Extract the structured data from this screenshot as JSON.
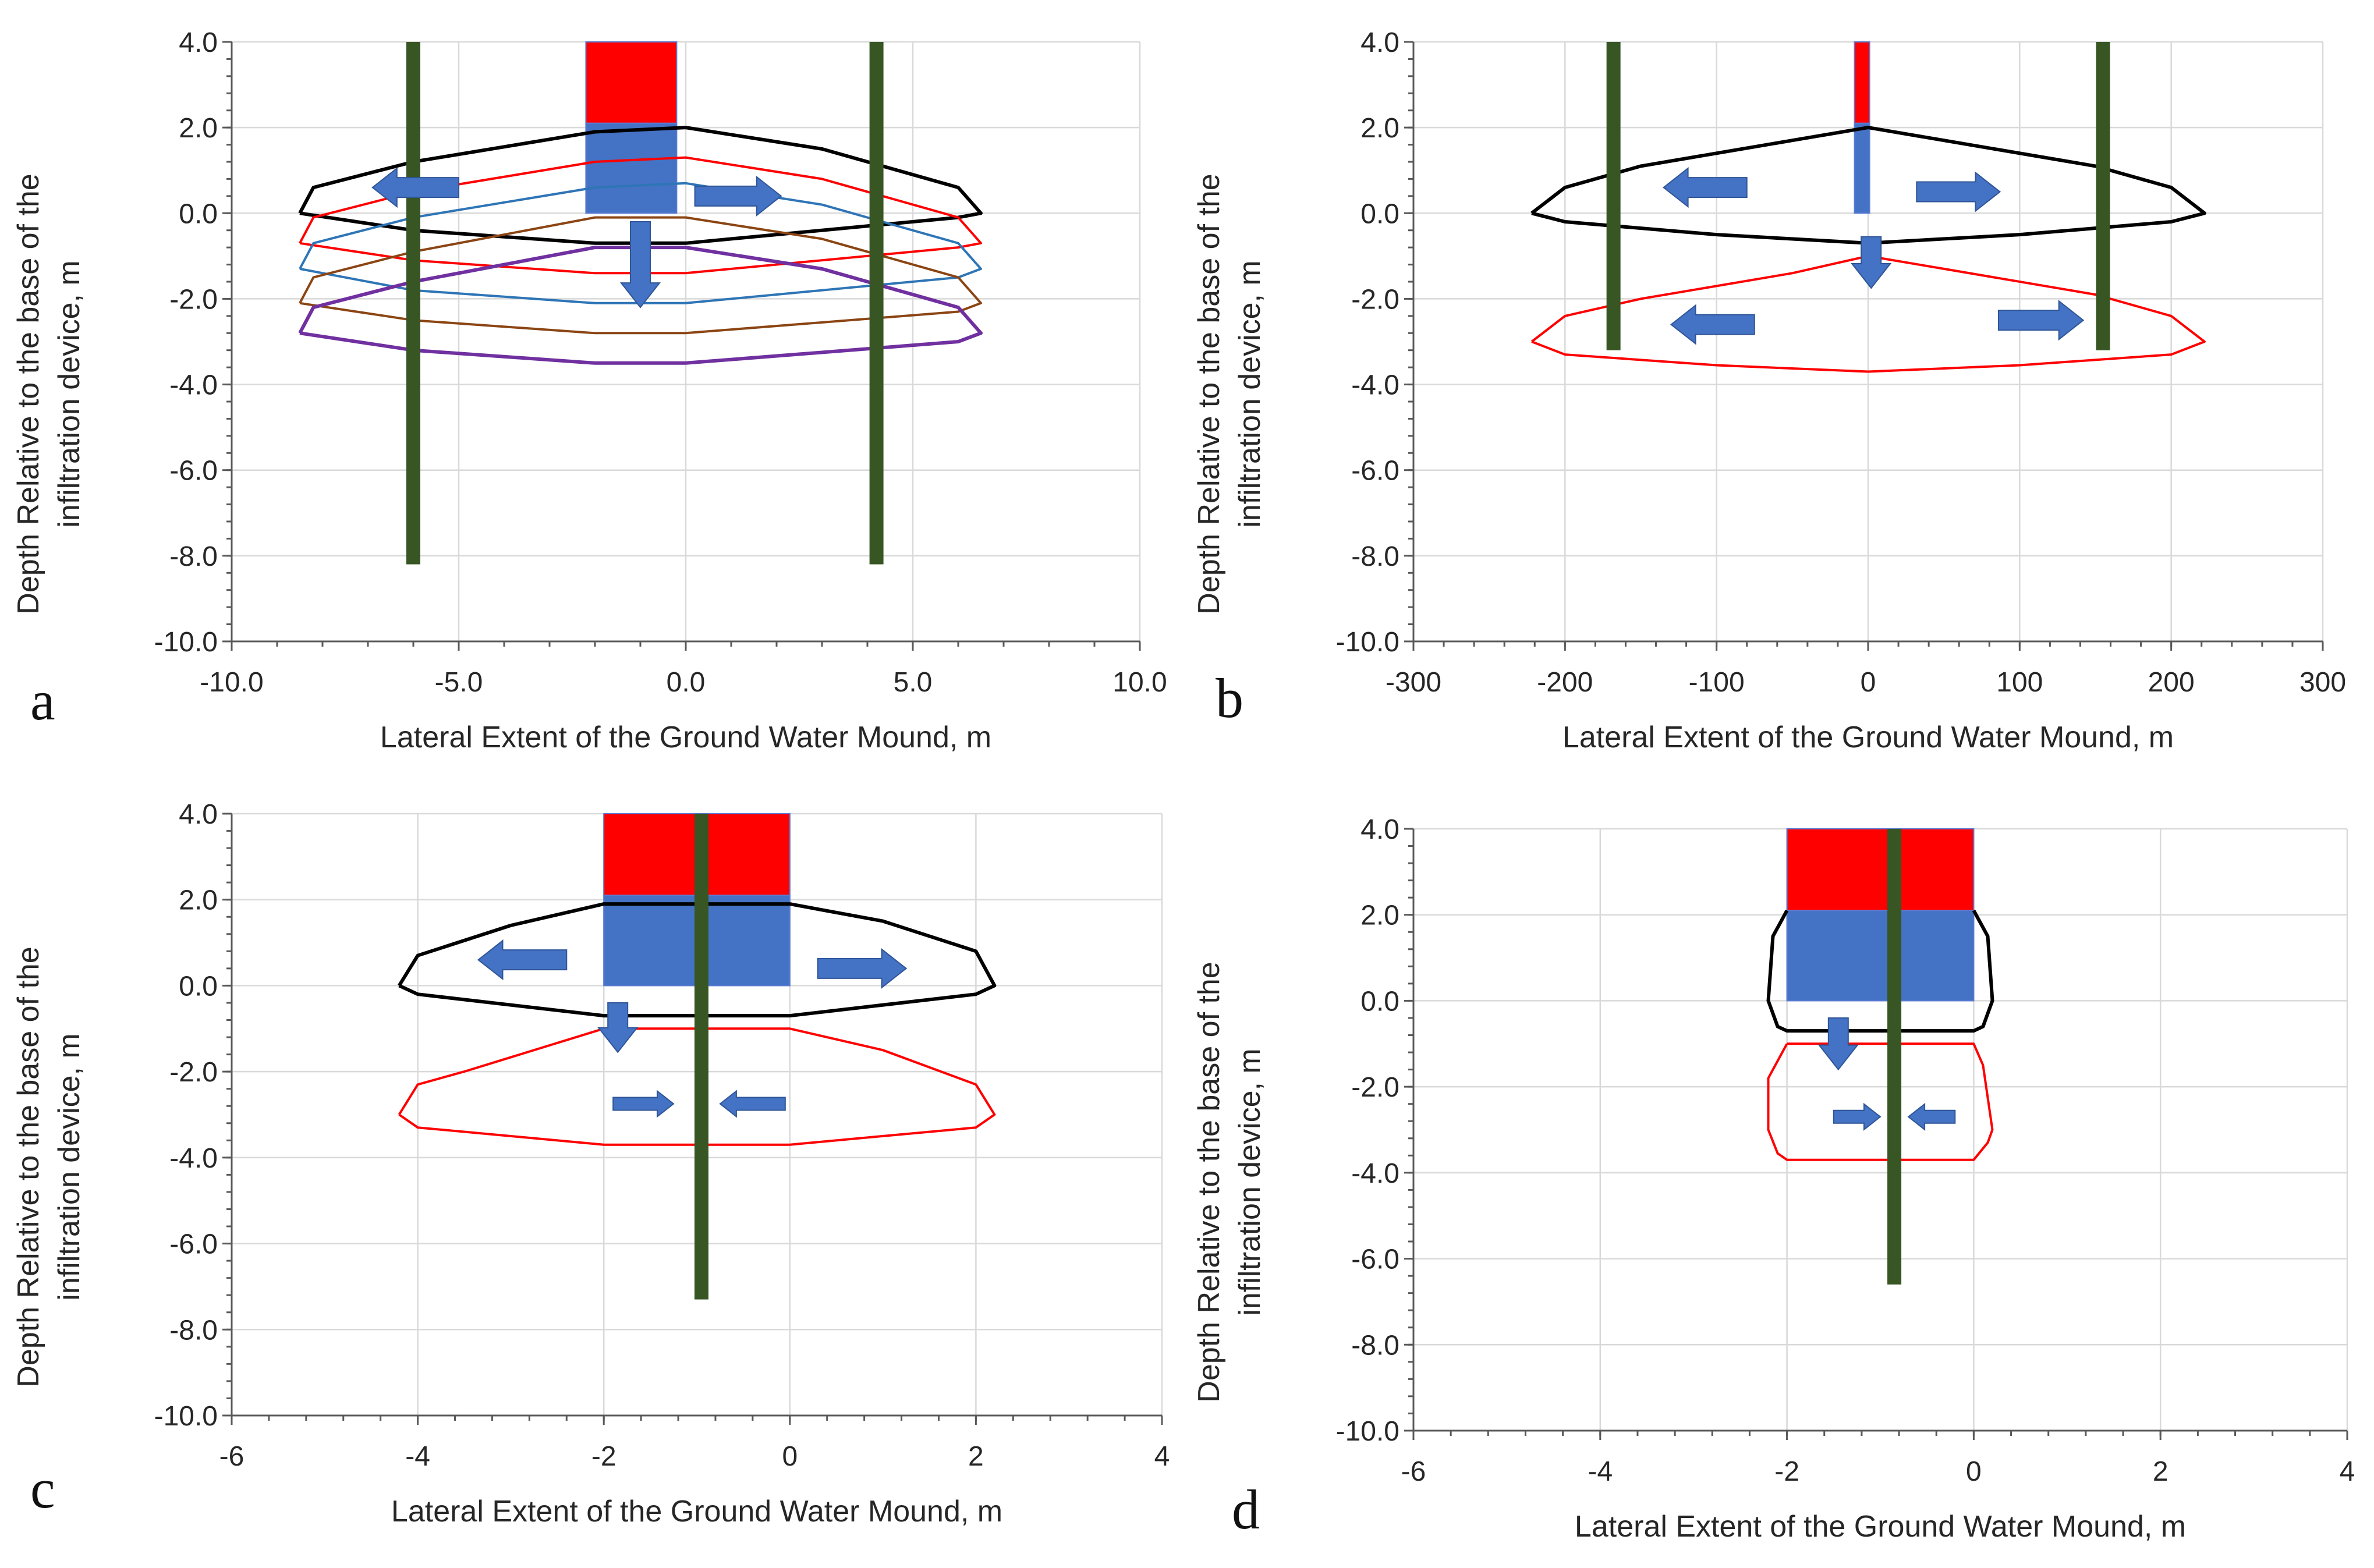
{
  "chart_data": [
    {
      "panel": "a",
      "type": "line",
      "xlabel": "Lateral Extent of the Ground Water Mound, m",
      "ylabel": [
        "Depth Relative to the base of the",
        "infiltration device, m"
      ],
      "xlim": [
        -10,
        10
      ],
      "ylim": [
        -10,
        4
      ],
      "xticks": [
        -10,
        -5,
        0,
        5,
        10
      ],
      "xtick_labels": [
        "-10.0",
        "-5.0",
        "0.0",
        "5.0",
        "10.0"
      ],
      "yticks": [
        4,
        2,
        0,
        -2,
        -4,
        -6,
        -8,
        -10
      ],
      "ytick_labels": [
        "4.0",
        "2.0",
        "0.0",
        "-2.0",
        "-4.0",
        "-6.0",
        "-8.0",
        "-10.0"
      ],
      "bars": [
        {
          "name": "device-top",
          "x0": -2.2,
          "x1": -0.2,
          "y0": 2.1,
          "y1": 4.0,
          "color": "#ff0000"
        },
        {
          "name": "device-bottom",
          "x0": -2.2,
          "x1": -0.2,
          "y0": 0.0,
          "y1": 2.1,
          "color": "#4472c4"
        }
      ],
      "wells": [
        {
          "x": -6.0,
          "y_top": 4.0,
          "y_bottom": -8.2,
          "color": "#375623"
        },
        {
          "x": 4.2,
          "y_top": 4.0,
          "y_bottom": -8.2,
          "color": "#375623"
        }
      ],
      "series": [
        {
          "name": "mound-1",
          "color": "#000000",
          "width": 6,
          "points": [
            [
              -8.5,
              0.0
            ],
            [
              -8.2,
              0.6
            ],
            [
              -6,
              1.2
            ],
            [
              -2,
              1.9
            ],
            [
              0,
              2.0
            ],
            [
              3,
              1.5
            ],
            [
              6,
              0.6
            ],
            [
              6.5,
              0.0
            ],
            [
              6,
              -0.1
            ],
            [
              0,
              -0.7
            ],
            [
              -2,
              -0.7
            ],
            [
              -6,
              -0.4
            ],
            [
              -8.5,
              0.0
            ]
          ]
        },
        {
          "name": "mound-2",
          "color": "#ff0000",
          "width": 4,
          "points": [
            [
              -8.5,
              -0.7
            ],
            [
              -8.2,
              -0.1
            ],
            [
              -6,
              0.5
            ],
            [
              -2,
              1.2
            ],
            [
              0,
              1.3
            ],
            [
              3,
              0.8
            ],
            [
              6,
              -0.1
            ],
            [
              6.5,
              -0.7
            ],
            [
              6,
              -0.8
            ],
            [
              0,
              -1.4
            ],
            [
              -2,
              -1.4
            ],
            [
              -6,
              -1.1
            ],
            [
              -8.5,
              -0.7
            ]
          ]
        },
        {
          "name": "mound-3",
          "color": "#2e75b6",
          "width": 4,
          "points": [
            [
              -8.5,
              -1.3
            ],
            [
              -8.2,
              -0.7
            ],
            [
              -6,
              -0.1
            ],
            [
              -2,
              0.6
            ],
            [
              0,
              0.7
            ],
            [
              3,
              0.2
            ],
            [
              6,
              -0.7
            ],
            [
              6.5,
              -1.3
            ],
            [
              6,
              -1.5
            ],
            [
              0,
              -2.1
            ],
            [
              -2,
              -2.1
            ],
            [
              -6,
              -1.8
            ],
            [
              -8.5,
              -1.3
            ]
          ]
        },
        {
          "name": "mound-4",
          "color": "#8b4513",
          "width": 4,
          "points": [
            [
              -8.5,
              -2.1
            ],
            [
              -8.2,
              -1.5
            ],
            [
              -6,
              -0.9
            ],
            [
              -2,
              -0.1
            ],
            [
              0,
              -0.1
            ],
            [
              3,
              -0.6
            ],
            [
              6,
              -1.5
            ],
            [
              6.5,
              -2.1
            ],
            [
              6,
              -2.3
            ],
            [
              0,
              -2.8
            ],
            [
              -2,
              -2.8
            ],
            [
              -6,
              -2.5
            ],
            [
              -8.5,
              -2.1
            ]
          ]
        },
        {
          "name": "mound-5",
          "color": "#7030a0",
          "width": 6,
          "points": [
            [
              -8.5,
              -2.8
            ],
            [
              -8.2,
              -2.2
            ],
            [
              -6,
              -1.6
            ],
            [
              -2,
              -0.8
            ],
            [
              0,
              -0.8
            ],
            [
              3,
              -1.3
            ],
            [
              6,
              -2.2
            ],
            [
              6.5,
              -2.8
            ],
            [
              6,
              -3.0
            ],
            [
              0,
              -3.5
            ],
            [
              -2,
              -3.5
            ],
            [
              -6,
              -3.2
            ],
            [
              -8.5,
              -2.8
            ]
          ]
        }
      ],
      "arrows": [
        {
          "direction": "left",
          "x": -5,
          "y": 0.6,
          "length": 1.9,
          "size": "large"
        },
        {
          "direction": "right",
          "x": 0.2,
          "y": 0.4,
          "length": 1.9,
          "size": "large"
        },
        {
          "direction": "down",
          "x": -1.0,
          "y": -0.2,
          "length": 2.0,
          "size": "large"
        }
      ]
    },
    {
      "panel": "b",
      "type": "line",
      "xlabel": "Lateral Extent of the Ground Water Mound, m",
      "ylabel": [
        "Depth Relative to the base of the",
        "infiltration device, m"
      ],
      "xlim": [
        -300,
        300
      ],
      "ylim": [
        -10,
        4
      ],
      "xticks": [
        -300,
        -200,
        -100,
        0,
        100,
        200,
        300
      ],
      "xtick_labels": [
        "-300",
        "-200",
        "-100",
        "0",
        "100",
        "200",
        "300"
      ],
      "yticks": [
        4,
        2,
        0,
        -2,
        -4,
        -6,
        -8,
        -10
      ],
      "ytick_labels": [
        "4.0",
        "2.0",
        "0.0",
        "-2.0",
        "-4.0",
        "-6.0",
        "-8.0",
        "-10.0"
      ],
      "bars": [
        {
          "name": "device-top",
          "x0": -9,
          "x1": 1,
          "y0": 2.1,
          "y1": 4.0,
          "color": "#ff0000"
        },
        {
          "name": "device-bottom",
          "x0": -9,
          "x1": 1,
          "y0": 0.0,
          "y1": 2.1,
          "color": "#4472c4"
        }
      ],
      "wells": [
        {
          "x": -168,
          "y_top": 4.0,
          "y_bottom": -3.2,
          "color": "#375623"
        },
        {
          "x": 155,
          "y_top": 4.0,
          "y_bottom": -3.2,
          "color": "#375623"
        }
      ],
      "series": [
        {
          "name": "mound-1",
          "color": "#000000",
          "width": 6,
          "points": [
            [
              -222,
              0.0
            ],
            [
              -200,
              0.6
            ],
            [
              -150,
              1.1
            ],
            [
              -50,
              1.7
            ],
            [
              0,
              2.0
            ],
            [
              50,
              1.7
            ],
            [
              150,
              1.1
            ],
            [
              200,
              0.6
            ],
            [
              222,
              0.0
            ],
            [
              200,
              -0.2
            ],
            [
              100,
              -0.5
            ],
            [
              0,
              -0.7
            ],
            [
              -100,
              -0.5
            ],
            [
              -200,
              -0.2
            ],
            [
              -222,
              0.0
            ]
          ]
        },
        {
          "name": "mound-2",
          "color": "#ff0000",
          "width": 4,
          "points": [
            [
              -222,
              -3.0
            ],
            [
              -200,
              -2.4
            ],
            [
              -150,
              -2.0
            ],
            [
              -50,
              -1.4
            ],
            [
              0,
              -1.0
            ],
            [
              50,
              -1.3
            ],
            [
              150,
              -1.9
            ],
            [
              200,
              -2.4
            ],
            [
              222,
              -3.0
            ],
            [
              200,
              -3.3
            ],
            [
              100,
              -3.55
            ],
            [
              0,
              -3.7
            ],
            [
              -100,
              -3.55
            ],
            [
              -200,
              -3.3
            ],
            [
              -222,
              -3.0
            ]
          ]
        }
      ],
      "arrows": [
        {
          "direction": "left",
          "x": -80,
          "y": 0.6,
          "length": 55,
          "size": "large"
        },
        {
          "direction": "right",
          "x": 32,
          "y": 0.5,
          "length": 55,
          "size": "large"
        },
        {
          "direction": "down",
          "x": 2,
          "y": -0.55,
          "length": 1.2,
          "size": "large"
        },
        {
          "direction": "left",
          "x": -75,
          "y": -2.6,
          "length": 55,
          "size": "large"
        },
        {
          "direction": "right",
          "x": 86,
          "y": -2.5,
          "length": 56,
          "size": "large"
        }
      ]
    },
    {
      "panel": "c",
      "type": "line",
      "xlabel": "Lateral Extent of the Ground Water Mound, m",
      "ylabel": [
        "Depth Relative to the base of the",
        "infiltration device, m"
      ],
      "xlim": [
        -6,
        4
      ],
      "ylim": [
        -10,
        4
      ],
      "xticks": [
        -6,
        -4,
        -2,
        0,
        2,
        4
      ],
      "xtick_labels": [
        "-6",
        "-4",
        "-2",
        "0",
        "2",
        "4"
      ],
      "yticks": [
        4,
        2,
        0,
        -2,
        -4,
        -6,
        -8,
        -10
      ],
      "ytick_labels": [
        "4.0",
        "2.0",
        "0.0",
        "-2.0",
        "-4.0",
        "-6.0",
        "-8.0",
        "-10.0"
      ],
      "bars": [
        {
          "name": "device-top",
          "x0": -2.0,
          "x1": 0.0,
          "y0": 2.1,
          "y1": 4.0,
          "color": "#ff0000"
        },
        {
          "name": "device-bottom",
          "x0": -2.0,
          "x1": 0.0,
          "y0": 0.0,
          "y1": 2.1,
          "color": "#4472c4"
        }
      ],
      "wells": [
        {
          "x": -0.95,
          "y_top": 4.0,
          "y_bottom": -7.3,
          "color": "#375623"
        }
      ],
      "series": [
        {
          "name": "mound-1",
          "color": "#000000",
          "width": 6,
          "points": [
            [
              -4.2,
              0.0
            ],
            [
              -4.0,
              0.7
            ],
            [
              -3.0,
              1.4
            ],
            [
              -2.0,
              1.9
            ],
            [
              0.0,
              1.9
            ],
            [
              1.0,
              1.5
            ],
            [
              2.0,
              0.8
            ],
            [
              2.2,
              0.0
            ],
            [
              2.0,
              -0.2
            ],
            [
              0.0,
              -0.7
            ],
            [
              -2.0,
              -0.7
            ],
            [
              -4.0,
              -0.2
            ],
            [
              -4.2,
              0.0
            ]
          ]
        },
        {
          "name": "mound-2",
          "color": "#ff0000",
          "width": 4,
          "points": [
            [
              -4.2,
              -3.0
            ],
            [
              -4.0,
              -2.3
            ],
            [
              -3.5,
              -2.0
            ],
            [
              -2.0,
              -1.0
            ],
            [
              0.0,
              -1.0
            ],
            [
              1.0,
              -1.5
            ],
            [
              2.0,
              -2.3
            ],
            [
              2.2,
              -3.0
            ],
            [
              2.0,
              -3.3
            ],
            [
              0.0,
              -3.7
            ],
            [
              -2.0,
              -3.7
            ],
            [
              -4.0,
              -3.3
            ],
            [
              -4.2,
              -3.0
            ]
          ]
        }
      ],
      "arrows": [
        {
          "direction": "left",
          "x": -2.4,
          "y": 0.6,
          "length": 0.95,
          "size": "large"
        },
        {
          "direction": "right",
          "x": 0.3,
          "y": 0.4,
          "length": 0.95,
          "size": "large"
        },
        {
          "direction": "down",
          "x": -1.85,
          "y": -0.4,
          "length": 1.15,
          "size": "large"
        },
        {
          "direction": "right",
          "x": -1.9,
          "y": -2.75,
          "length": 0.65,
          "size": "small"
        },
        {
          "direction": "left",
          "x": -0.05,
          "y": -2.75,
          "length": 0.7,
          "size": "small"
        }
      ]
    },
    {
      "panel": "d",
      "type": "line",
      "xlabel": "Lateral Extent of the Ground Water Mound, m",
      "ylabel": [
        "Depth Relative to the base of the",
        "infiltration device, m"
      ],
      "xlim": [
        -6,
        4
      ],
      "ylim": [
        -10,
        4
      ],
      "xticks": [
        -6,
        -4,
        -2,
        0,
        2,
        4
      ],
      "xtick_labels": [
        "-6",
        "-4",
        "-2",
        "0",
        "2",
        "4"
      ],
      "yticks": [
        4,
        2,
        0,
        -2,
        -4,
        -6,
        -8,
        -10
      ],
      "ytick_labels": [
        "4.0",
        "2.0",
        "0.0",
        "-2.0",
        "-4.0",
        "-6.0",
        "-8.0",
        "-10.0"
      ],
      "bars": [
        {
          "name": "device-top",
          "x0": -2.0,
          "x1": 0.0,
          "y0": 2.1,
          "y1": 4.0,
          "color": "#ff0000"
        },
        {
          "name": "device-bottom",
          "x0": -2.0,
          "x1": 0.0,
          "y0": 0.0,
          "y1": 2.1,
          "color": "#4472c4"
        }
      ],
      "wells": [
        {
          "x": -0.85,
          "y_top": 4.0,
          "y_bottom": -6.6,
          "color": "#375623"
        }
      ],
      "series": [
        {
          "name": "mound-1",
          "color": "#000000",
          "width": 6,
          "points": [
            [
              -2.0,
              2.1
            ],
            [
              -2.15,
              1.5
            ],
            [
              -2.2,
              0.0
            ],
            [
              -2.1,
              -0.6
            ],
            [
              -2.0,
              -0.7
            ],
            [
              0.0,
              -0.7
            ],
            [
              0.1,
              -0.6
            ],
            [
              0.2,
              0.0
            ],
            [
              0.15,
              1.5
            ],
            [
              0.0,
              2.1
            ]
          ]
        },
        {
          "name": "mound-2",
          "color": "#ff0000",
          "width": 4,
          "points": [
            [
              -2.0,
              -1.0
            ],
            [
              -2.2,
              -1.8
            ],
            [
              -2.2,
              -3.0
            ],
            [
              -2.1,
              -3.55
            ],
            [
              -2.0,
              -3.7
            ],
            [
              0.0,
              -3.7
            ],
            [
              0.15,
              -3.3
            ],
            [
              0.2,
              -3.0
            ],
            [
              0.1,
              -1.5
            ],
            [
              0.0,
              -1.0
            ],
            [
              -2.0,
              -1.0
            ]
          ]
        }
      ],
      "arrows": [
        {
          "direction": "down",
          "x": -1.45,
          "y": -0.4,
          "length": 1.2,
          "size": "large"
        },
        {
          "direction": "right",
          "x": -1.5,
          "y": -2.7,
          "length": 0.5,
          "size": "small"
        },
        {
          "direction": "left",
          "x": -0.2,
          "y": -2.7,
          "length": 0.5,
          "size": "small"
        }
      ]
    }
  ],
  "panel_labels": [
    "a",
    "b",
    "c",
    "d"
  ],
  "colors": {
    "well": "#375623",
    "arrow_fill": "#4472c4",
    "arrow_stroke": "#2f5597"
  }
}
